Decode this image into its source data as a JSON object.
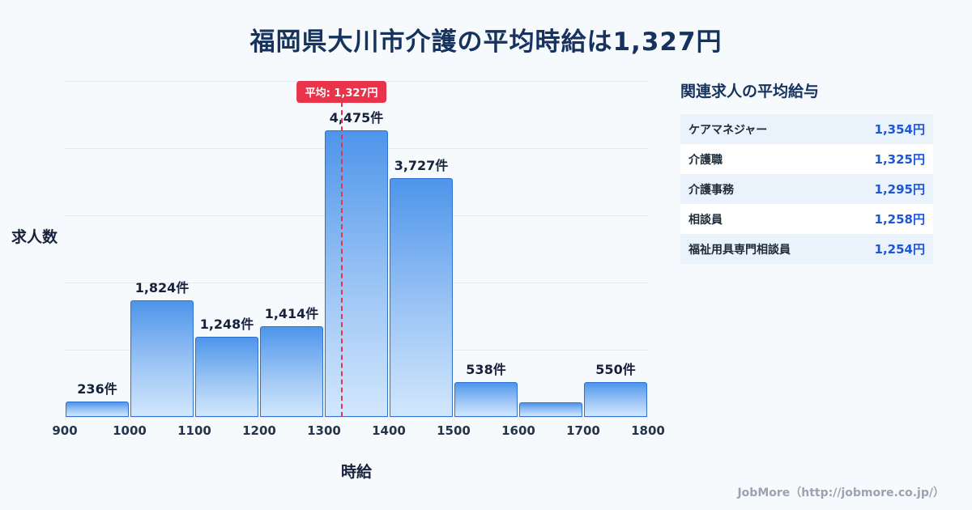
{
  "page": {
    "title": "福岡県大川市介護の平均時給は1,327円",
    "footer": "JobMore（http://jobmore.co.jp/）"
  },
  "chart_data": {
    "type": "bar",
    "title": "福岡県大川市介護の平均時給は1,327円",
    "xlabel": "時給",
    "ylabel": "求人数",
    "grid": true,
    "ylim": [
      0,
      5250
    ],
    "x_ticks": [
      "900",
      "1000",
      "1100",
      "1200",
      "1300",
      "1400",
      "1500",
      "1600",
      "1700",
      "1800"
    ],
    "bins": [
      {
        "range": "900-1000",
        "value": 236,
        "label": "236件"
      },
      {
        "range": "1000-1100",
        "value": 1824,
        "label": "1,824件"
      },
      {
        "range": "1100-1200",
        "value": 1248,
        "label": "1,248件"
      },
      {
        "range": "1200-1300",
        "value": 1414,
        "label": "1,414件"
      },
      {
        "range": "1300-1400",
        "value": 4475,
        "label": "4,475件"
      },
      {
        "range": "1400-1500",
        "value": 3727,
        "label": "3,727件"
      },
      {
        "range": "1500-1600",
        "value": 538,
        "label": "538件"
      },
      {
        "range": "1600-1700",
        "value": 230,
        "label": ""
      },
      {
        "range": "1700-1800",
        "value": 550,
        "label": "550件"
      }
    ],
    "average": {
      "value": 1327,
      "label": "平均: 1,327円"
    },
    "colors": {
      "bar_top": "#4e95ea",
      "bar_bottom": "#d2e7fc",
      "bar_border": "#2f6fd0",
      "average_line": "#e8334a",
      "title": "#15335e",
      "value_accent": "#1e56d6"
    }
  },
  "side_panel": {
    "title": "関連求人の平均給与",
    "rows": [
      {
        "label": "ケアマネジャー",
        "value": "1,354円"
      },
      {
        "label": "介護職",
        "value": "1,325円"
      },
      {
        "label": "介護事務",
        "value": "1,295円"
      },
      {
        "label": "相談員",
        "value": "1,258円"
      },
      {
        "label": "福祉用具専門相談員",
        "value": "1,254円"
      }
    ]
  }
}
